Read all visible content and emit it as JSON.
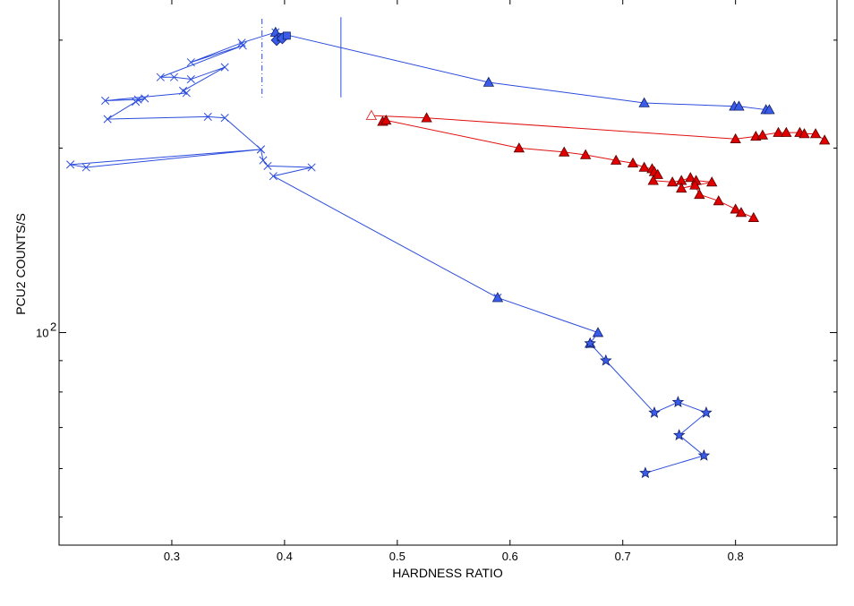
{
  "chart_data": {
    "type": "scatter",
    "xlabel": "HARDNESS RATIO",
    "ylabel": "PCU2 COUNTS/S",
    "xlim": [
      0.2,
      0.89
    ],
    "yscale": "log",
    "ylim": [
      45,
      350
    ],
    "x_ticks": [
      0.3,
      0.4,
      0.5,
      0.6,
      0.7,
      0.8
    ],
    "x_tick_labels": [
      "0.3",
      "0.4",
      "0.5",
      "0.6",
      "0.7",
      "0.8"
    ],
    "y_tick_label_base": "10",
    "y_tick_label_exp": "2",
    "y_tick_label_value": 100,
    "colors": {
      "blue": "#2b4cdc",
      "blue_fill": "#3b5ce8",
      "red": "#e01010",
      "red_fill": "#e00000"
    },
    "series": [
      {
        "name": "blue-cross-track",
        "color": "blue",
        "marker": "x",
        "x": [
          0.392,
          0.362,
          0.317,
          0.363,
          0.29,
          0.302,
          0.317,
          0.347,
          0.31,
          0.313,
          0.241,
          0.27,
          0.276,
          0.268,
          0.243,
          0.332,
          0.347,
          0.379,
          0.21,
          0.224,
          0.379,
          0.381,
          0.385,
          0.424,
          0.39,
          0.589
        ],
        "y": [
          309,
          297,
          276,
          294,
          261,
          261,
          259,
          271,
          248,
          246,
          239,
          240,
          241,
          238,
          223,
          225,
          224,
          199,
          188,
          186,
          199,
          191,
          187,
          186,
          180,
          114
        ]
      },
      {
        "name": "blue-triangle-track",
        "color": "blue",
        "marker": "triangle",
        "x": [
          0.392,
          0.581,
          0.719,
          0.799,
          0.803,
          0.827,
          0.83
        ],
        "y": [
          309,
          256,
          237,
          234,
          234,
          231,
          231
        ]
      },
      {
        "name": "blue-descent-track",
        "color": "blue",
        "marker": "triangle",
        "x": [
          0.589,
          0.678,
          0.671
        ],
        "y": [
          114,
          100,
          96
        ]
      },
      {
        "name": "blue-star-track",
        "color": "blue",
        "marker": "star",
        "x": [
          0.671,
          0.685,
          0.728,
          0.749,
          0.774,
          0.75,
          0.772,
          0.72
        ],
        "y": [
          96,
          90,
          74,
          77,
          74,
          68,
          63,
          59
        ]
      },
      {
        "name": "blue-diamond-cluster",
        "color": "blue",
        "marker": "diamond",
        "x": [
          0.393,
          0.398
        ],
        "y": [
          300,
          302
        ]
      },
      {
        "name": "red-upper-track",
        "color": "red",
        "marker": "triangle",
        "x": [
          0.477,
          0.526,
          0.8,
          0.818,
          0.824,
          0.838,
          0.845,
          0.857,
          0.861,
          0.871,
          0.879
        ],
        "y": [
          226,
          224,
          207,
          209,
          210,
          212,
          212,
          212,
          211,
          211,
          206
        ]
      },
      {
        "name": "red-lower-track",
        "color": "red",
        "marker": "triangle",
        "x": [
          0.487,
          0.49,
          0.608,
          0.648,
          0.667,
          0.694,
          0.709,
          0.719,
          0.726,
          0.728,
          0.731,
          0.727,
          0.744,
          0.752,
          0.76,
          0.765,
          0.779,
          0.752,
          0.764,
          0.768,
          0.785,
          0.8,
          0.805,
          0.816
        ],
        "y": [
          221,
          222,
          200,
          197,
          195,
          191,
          189,
          186,
          185,
          183,
          181,
          177,
          176,
          177,
          179,
          177,
          176,
          172,
          174,
          168,
          164,
          159,
          157,
          154
        ]
      }
    ],
    "annotations": [
      {
        "type": "errorbar-solid",
        "x": 0.45,
        "y_top": 327,
        "y_bottom": 242
      },
      {
        "type": "errorbar-dashdot",
        "x": 0.38,
        "y_top": 325,
        "y_bottom": 242
      }
    ],
    "open_markers": [
      {
        "series": "red-upper-track",
        "index": 0
      }
    ],
    "marker_series_overlay": [
      "blue-triangle-track",
      "blue-descent-track",
      "blue-star-track"
    ]
  }
}
